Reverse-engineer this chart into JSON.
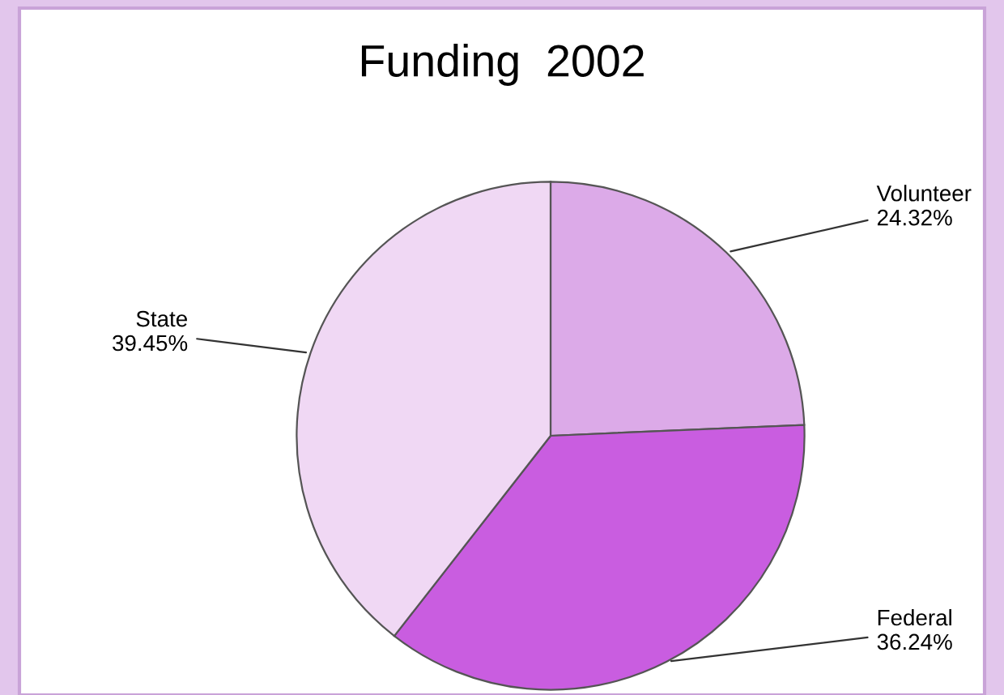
{
  "chart_data": {
    "type": "pie",
    "title": "Funding  2002",
    "categories": [
      "Volunteer",
      "Federal",
      "State"
    ],
    "values": [
      24.32,
      36.24,
      39.45
    ],
    "value_labels": [
      "24.32%",
      "36.24%",
      "39.45%"
    ],
    "colors": [
      "#dcaae8",
      "#c95de0",
      "#f0d8f4"
    ]
  }
}
